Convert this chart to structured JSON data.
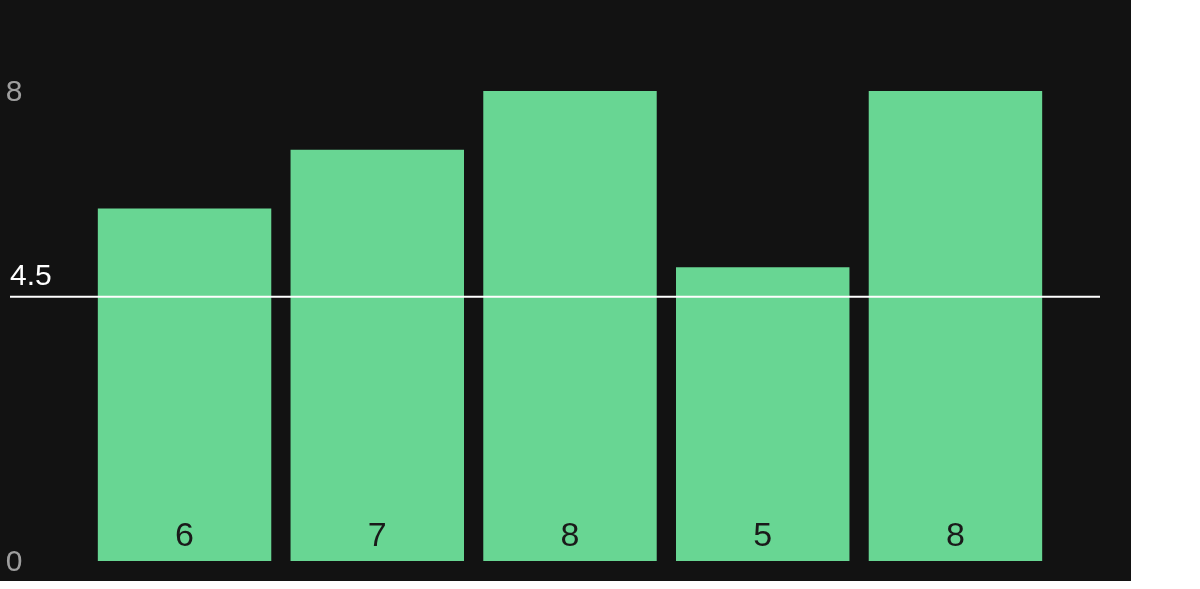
{
  "chart_data": {
    "type": "bar",
    "categories": [
      null,
      null,
      null,
      null,
      null
    ],
    "values": [
      6,
      7,
      8,
      5,
      8
    ],
    "color": "#68d693",
    "ylim": [
      0,
      8
    ],
    "yticks": [
      0,
      8
    ],
    "grid": false,
    "data_labels": true,
    "ref_lines": [
      {
        "axis": "y",
        "value": 4.5,
        "label": "4.5",
        "color": "#ffffff"
      }
    ]
  }
}
